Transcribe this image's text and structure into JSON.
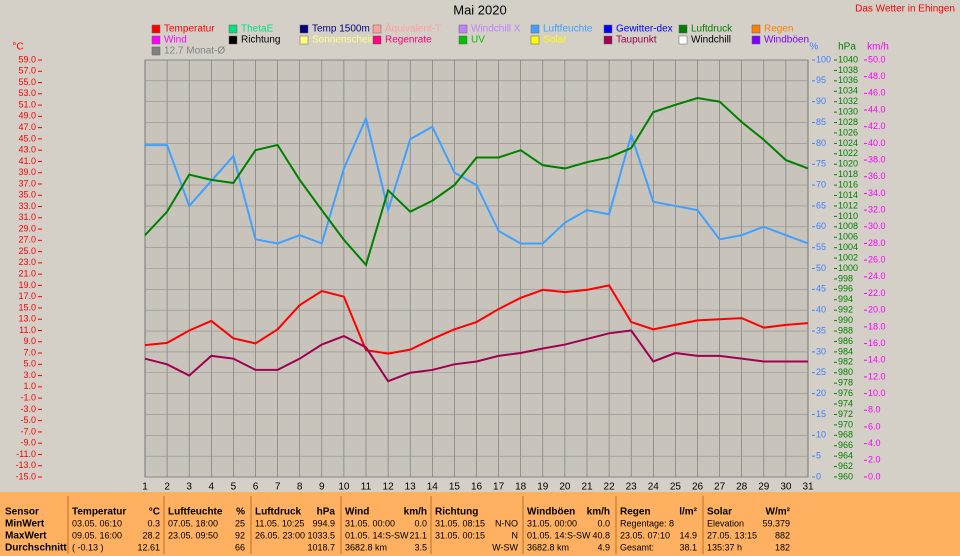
{
  "chart_data": {
    "type": "line",
    "title": "Mai 2020",
    "subtitle": "Das Wetter in Ehingen",
    "x": [
      1,
      2,
      3,
      4,
      5,
      6,
      7,
      8,
      9,
      10,
      11,
      12,
      13,
      14,
      15,
      16,
      17,
      18,
      19,
      20,
      21,
      22,
      23,
      24,
      25,
      26,
      27,
      28,
      29,
      30,
      31
    ],
    "xlim": [
      1,
      31
    ],
    "xticks": [
      1,
      2,
      3,
      4,
      5,
      6,
      7,
      8,
      9,
      10,
      11,
      12,
      13,
      14,
      15,
      16,
      17,
      18,
      19,
      20,
      21,
      22,
      23,
      24,
      25,
      26,
      27,
      28,
      29,
      30,
      31
    ],
    "grid": true,
    "y_label": "°C",
    "y_color": "#ff0000",
    "ylim": [
      -15,
      59
    ],
    "yticks": [
      {
        "value": -15,
        "label": "-15.0"
      },
      {
        "value": -13,
        "label": "-13.0"
      },
      {
        "value": -11,
        "label": "-11.0"
      },
      {
        "value": -9,
        "label": "-9.0"
      },
      {
        "value": -7,
        "label": "-7.0"
      },
      {
        "value": -5,
        "label": "-5.0"
      },
      {
        "value": -3,
        "label": "-3.0"
      },
      {
        "value": -1,
        "label": "-1.0"
      },
      {
        "value": 1,
        "label": "1.0"
      },
      {
        "value": 3,
        "label": "3.0"
      },
      {
        "value": 5,
        "label": "5.0"
      },
      {
        "value": 7,
        "label": "7.0"
      },
      {
        "value": 9,
        "label": "9.0"
      },
      {
        "value": 11,
        "label": "11.0"
      },
      {
        "value": 13,
        "label": "13.0"
      },
      {
        "value": 15,
        "label": "15.0"
      },
      {
        "value": 17,
        "label": "17.0"
      },
      {
        "value": 19,
        "label": "19.0"
      },
      {
        "value": 21,
        "label": "21.0"
      },
      {
        "value": 23,
        "label": "23.0"
      },
      {
        "value": 25,
        "label": "25.0"
      },
      {
        "value": 27,
        "label": "27.0"
      },
      {
        "value": 29,
        "label": "29.0"
      },
      {
        "value": 31,
        "label": "31.0"
      },
      {
        "value": 33,
        "label": "33.0"
      },
      {
        "value": 35,
        "label": "35.0"
      },
      {
        "value": 37,
        "label": "37.0"
      },
      {
        "value": 39,
        "label": "39.0"
      },
      {
        "value": 41,
        "label": "41.0"
      },
      {
        "value": 43,
        "label": "43.0"
      },
      {
        "value": 45,
        "label": "45.0"
      },
      {
        "value": 47,
        "label": "47.0"
      },
      {
        "value": 49,
        "label": "49.0"
      },
      {
        "value": 51,
        "label": "51.0"
      },
      {
        "value": 53,
        "label": "53.0"
      },
      {
        "value": 55,
        "label": "55.0"
      },
      {
        "value": 57,
        "label": "57.0"
      },
      {
        "value": 59,
        "label": "59.0"
      }
    ],
    "y2_label": "%",
    "y2_color": "#4080ff",
    "y2lim": [
      0,
      100
    ],
    "y2ticks": [
      0,
      5,
      10,
      15,
      20,
      25,
      30,
      35,
      40,
      45,
      50,
      55,
      60,
      65,
      70,
      75,
      80,
      85,
      90,
      95,
      100
    ],
    "y3_label": "hPa",
    "y3_color": "#008000",
    "y3lim": [
      960,
      1040
    ],
    "y3ticks": [
      960,
      962,
      964,
      966,
      968,
      970,
      972,
      974,
      976,
      978,
      980,
      982,
      984,
      986,
      988,
      990,
      992,
      994,
      996,
      998,
      1000,
      1002,
      1004,
      1006,
      1008,
      1010,
      1012,
      1014,
      1016,
      1018,
      1020,
      1022,
      1024,
      1026,
      1028,
      1030,
      1032,
      1034,
      1036,
      1038,
      1040
    ],
    "y4_label": "km/h",
    "y4_color": "#ff00ff",
    "y4lim": [
      0,
      50
    ],
    "y4ticks": [
      {
        "value": 0,
        "label": "0.0"
      },
      {
        "value": 2,
        "label": "2.0"
      },
      {
        "value": 4,
        "label": "4.0"
      },
      {
        "value": 6,
        "label": "6.0"
      },
      {
        "value": 8,
        "label": "8.0"
      },
      {
        "value": 10,
        "label": "10.0"
      },
      {
        "value": 12,
        "label": "12.0"
      },
      {
        "value": 14,
        "label": "14.0"
      },
      {
        "value": 16,
        "label": "16.0"
      },
      {
        "value": 18,
        "label": "18.0"
      },
      {
        "value": 20,
        "label": "20.0"
      },
      {
        "value": 22,
        "label": "22.0"
      },
      {
        "value": 24,
        "label": "24.0"
      },
      {
        "value": 26,
        "label": "26.0"
      },
      {
        "value": 28,
        "label": "28.0"
      },
      {
        "value": 30,
        "label": "30.0"
      },
      {
        "value": 32,
        "label": "32.0"
      },
      {
        "value": 34,
        "label": "34.0"
      },
      {
        "value": 36,
        "label": "36.0"
      },
      {
        "value": 38,
        "label": "38.0"
      },
      {
        "value": 40,
        "label": "40.0"
      },
      {
        "value": 42,
        "label": "42.0"
      },
      {
        "value": 44,
        "label": "44.0"
      },
      {
        "value": 46,
        "label": "46.0"
      },
      {
        "value": 48,
        "label": "48.0"
      },
      {
        "value": 50,
        "label": "50.0"
      }
    ],
    "series": [
      {
        "name": "Temperatur",
        "color": "#ff0000",
        "axis": "y",
        "values": [
          8.4,
          8.8,
          11.0,
          12.7,
          9.6,
          8.7,
          11.2,
          15.5,
          18.0,
          17.0,
          7.5,
          6.9,
          7.6,
          9.5,
          11.2,
          12.5,
          14.8,
          16.8,
          18.2,
          17.8,
          18.2,
          19.0,
          12.5,
          11.2,
          12.0,
          12.8,
          13.0,
          13.2,
          11.5,
          12.0,
          12.3
        ]
      },
      {
        "name": "ThetaE",
        "color": "#00e080"
      },
      {
        "name": "Temp 1500m",
        "color": "#000080"
      },
      {
        "name": "Äquivalent-T",
        "color": "#ffa0a0"
      },
      {
        "name": "Windchill X",
        "color": "#c080ff"
      },
      {
        "name": "Luftfeuchte",
        "color": "#40a0ff",
        "axis": "y2",
        "values": [
          79.6,
          79.6,
          65,
          71,
          77,
          57,
          56,
          58,
          56,
          74,
          86,
          64,
          81,
          84,
          73,
          70,
          59,
          56,
          56,
          61,
          64,
          63,
          82,
          66,
          65,
          64,
          57,
          58,
          60,
          58,
          56
        ]
      },
      {
        "name": "Gewitter-dex",
        "color": "#0000ff"
      },
      {
        "name": "Luftdruck",
        "color": "#008000",
        "axis": "y3",
        "values": [
          1006.4,
          1010.9,
          1018,
          1017,
          1016.4,
          1022.7,
          1023.7,
          1017,
          1011.2,
          1005.5,
          1000.7,
          1015,
          1010.9,
          1013,
          1016,
          1021.3,
          1021.3,
          1022.7,
          1019.8,
          1019.2,
          1020.4,
          1021.3,
          1023.1,
          1030,
          1031.4,
          1032.7,
          1032,
          1028.1,
          1024.7,
          1020.8,
          1019.2
        ]
      },
      {
        "name": "Regen",
        "color": "#ff8000"
      },
      {
        "name": "Wind",
        "color": "#ff00ff"
      },
      {
        "name": "Richtung",
        "color": "#000000"
      },
      {
        "name": "Sonnenschein",
        "color": "#ffff80"
      },
      {
        "name": "Regenrate",
        "color": "#ff0080"
      },
      {
        "name": "UV",
        "color": "#00c000"
      },
      {
        "name": "Solar",
        "color": "#ffff00"
      },
      {
        "name": "Taupunkt",
        "color": "#a00050",
        "axis": "y",
        "values": [
          6.0,
          5.0,
          3.0,
          6.5,
          6.0,
          4.0,
          4.0,
          6.0,
          8.5,
          10.0,
          8.0,
          2.0,
          3.5,
          4.0,
          5.0,
          5.5,
          6.5,
          7.0,
          7.8,
          8.5,
          9.5,
          10.5,
          11.0,
          5.5,
          7.0,
          6.5,
          6.5,
          6.0,
          5.5,
          5.5,
          5.5
        ]
      },
      {
        "name": "Windchill",
        "color": "#ffffff"
      },
      {
        "name": "Windböen",
        "color": "#8000ff"
      },
      {
        "name": "12.7 Monat-Ø",
        "color": "#808080"
      }
    ]
  },
  "stats_table": {
    "columns": [
      {
        "label": "Sensor"
      },
      {
        "label": "Temperatur",
        "unit": "°C"
      },
      {
        "label": "Luftfeuchte",
        "unit": "%"
      },
      {
        "label": "Luftdruck",
        "unit": "hPa"
      },
      {
        "label": "Wind",
        "unit": "km/h"
      },
      {
        "label": "Richtung"
      },
      {
        "label": "Windböen",
        "unit": "km/h"
      },
      {
        "label": "Regen",
        "unit": "l/m²"
      },
      {
        "label": "Solar",
        "unit": "W/m²"
      }
    ],
    "rows": [
      {
        "label": "MinWert",
        "cells": [
          [
            "03.05. 06:10",
            "0.3"
          ],
          [
            "07.05. 18:00",
            "25"
          ],
          [
            "11.05. 10:25",
            "994.9"
          ],
          [
            "31.05. 00:00",
            "0.0"
          ],
          [
            "31.05. 08:15",
            "N-NO"
          ],
          [
            "31.05. 00:00",
            "0.0"
          ],
          [
            "Regentage: 8",
            null
          ],
          [
            "Elevation",
            "59.379"
          ]
        ]
      },
      {
        "label": "MaxWert",
        "cells": [
          [
            "09.05. 16:00",
            "28.2"
          ],
          [
            "23.05. 09:50",
            "92"
          ],
          [
            "26.05. 23:00",
            "1033.5"
          ],
          [
            "01.05. 14:S-SW",
            "21.1"
          ],
          [
            "31.05. 00:15",
            "N"
          ],
          [
            "01.05. 14:S-SW",
            "40.8"
          ],
          [
            "23.05. 07:10",
            "14.9"
          ],
          [
            "27.05. 13:15",
            "882"
          ]
        ]
      },
      {
        "label": "Durchschnitt",
        "cells": [
          [
            "( -0.13 )",
            "12.61"
          ],
          [
            null,
            "66"
          ],
          [
            null,
            "1018.7"
          ],
          [
            "3682.8 km",
            "3.5"
          ],
          [
            null,
            "W-SW"
          ],
          [
            "3682.8 km",
            "4.9"
          ],
          [
            "Gesamt:",
            "38.1"
          ],
          [
            "135:37 h",
            "182"
          ]
        ]
      }
    ]
  }
}
